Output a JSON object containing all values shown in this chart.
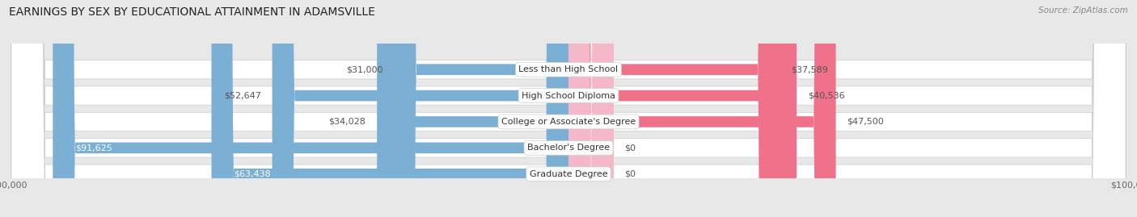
{
  "title": "EARNINGS BY SEX BY EDUCATIONAL ATTAINMENT IN ADAMSVILLE",
  "source": "Source: ZipAtlas.com",
  "categories": [
    "Less than High School",
    "High School Diploma",
    "College or Associate's Degree",
    "Bachelor's Degree",
    "Graduate Degree"
  ],
  "male_values": [
    31000,
    52647,
    34028,
    91625,
    63438
  ],
  "female_values": [
    37589,
    40536,
    47500,
    0,
    0
  ],
  "male_labels": [
    "$31,000",
    "$52,647",
    "$34,028",
    "$91,625",
    "$63,438"
  ],
  "female_labels": [
    "$37,589",
    "$40,536",
    "$47,500",
    "$0",
    "$0"
  ],
  "male_color": "#7bafd4",
  "female_color": "#f0728a",
  "female_zero_color": "#f5b8c8",
  "max_value": 100000,
  "bg_color": "#e8e8e8",
  "row_bg_color": "#f5f5f5",
  "title_fontsize": 10,
  "label_fontsize": 8,
  "category_fontsize": 8,
  "source_fontsize": 7.5
}
